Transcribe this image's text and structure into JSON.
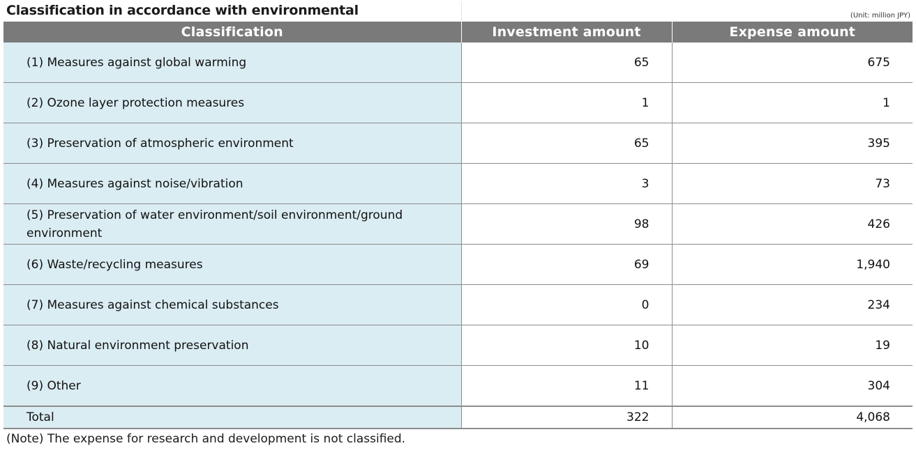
{
  "title": "Classification in accordance with environmental",
  "unit": "(Unit: million JPY)",
  "columns": [
    "Classification",
    "Investment amount",
    "Expense amount"
  ],
  "rows": [
    {
      "classification": "(1) Measures against global warming",
      "investment": "65",
      "expense": "675"
    },
    {
      "classification": "(2) Ozone layer protection measures",
      "investment": "1",
      "expense": "1"
    },
    {
      "classification": "(3) Preservation of atmospheric environment",
      "investment": "65",
      "expense": "395"
    },
    {
      "classification": "(4) Measures against noise/vibration",
      "investment": "3",
      "expense": "73"
    },
    {
      "classification": "(5) Preservation of water environment/soil environment/ground environment",
      "investment": "98",
      "expense": "426"
    },
    {
      "classification": "(6) Waste/recycling measures",
      "investment": "69",
      "expense": "1,940"
    },
    {
      "classification": "(7) Measures against chemical substances",
      "investment": "0",
      "expense": "234"
    },
    {
      "classification": "(8) Natural environment preservation",
      "investment": "10",
      "expense": "19"
    },
    {
      "classification": "(9) Other",
      "investment": "11",
      "expense": "304"
    }
  ],
  "total": {
    "label": "Total",
    "investment": "322",
    "expense": "4,068"
  },
  "note": "(Note) The expense for research and development is not classified.",
  "colors": {
    "header_bg": "#7a7a7a",
    "classification_bg": "#daedf3",
    "grid_line": "#8c8c8c"
  }
}
